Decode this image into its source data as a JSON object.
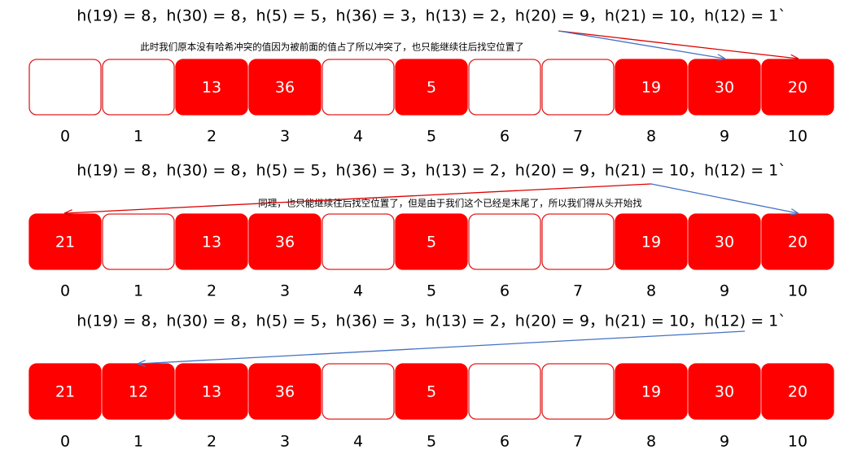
{
  "panels": [
    {
      "formula": "h(19) = 8，h(30) = 8，h(5) = 5，h(36) = 3，h(13) = 2，h(20) = 9，h(21) = 10，h(12) = 1`",
      "note": "此时我们原本没有哈希冲突的值因为被前面的值占了所以冲突了，也只能继续往后找空位置了",
      "cells": [
        null,
        null,
        13,
        36,
        null,
        5,
        null,
        null,
        19,
        30,
        20
      ],
      "indices": [
        0,
        1,
        2,
        3,
        4,
        5,
        6,
        7,
        8,
        9,
        10
      ]
    },
    {
      "formula": "h(19) = 8，h(30) = 8，h(5) = 5，h(36) = 3，h(13) = 2，h(20) = 9，h(21) = 10，h(12) = 1`",
      "note": "同理，也只能继续往后找空位置了，但是由于我们这个已经是末尾了，所以我们得从头开始找",
      "cells": [
        21,
        null,
        13,
        36,
        null,
        5,
        null,
        null,
        19,
        30,
        20
      ],
      "indices": [
        0,
        1,
        2,
        3,
        4,
        5,
        6,
        7,
        8,
        9,
        10
      ]
    },
    {
      "formula": "h(19) = 8，h(30) = 8，h(5) = 5，h(36) = 3，h(13) = 2，h(20) = 9，h(21) = 10，h(12) = 1`",
      "cells": [
        21,
        12,
        13,
        36,
        null,
        5,
        null,
        null,
        19,
        30,
        20
      ],
      "indices": [
        0,
        1,
        2,
        3,
        4,
        5,
        6,
        7,
        8,
        9,
        10
      ]
    }
  ]
}
